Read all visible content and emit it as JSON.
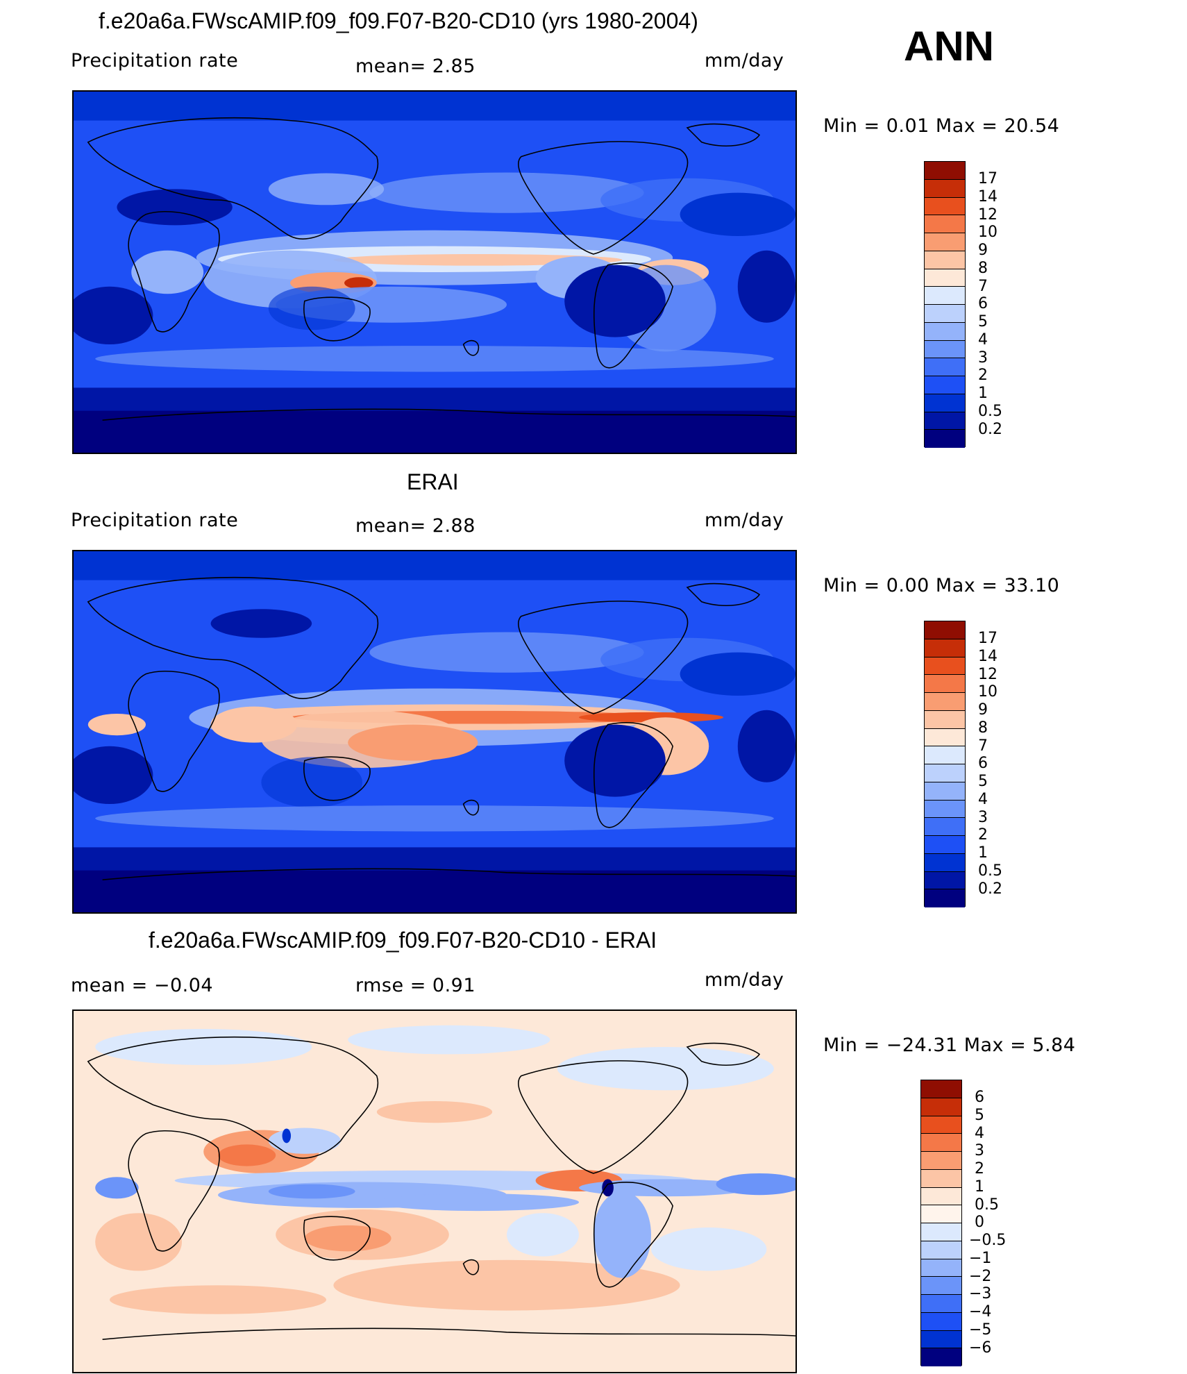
{
  "season": "ANN",
  "colors": {
    "precip_scale": [
      "#00007f",
      "#0016a6",
      "#0033d2",
      "#1e50f5",
      "#3f6ff7",
      "#6b94f9",
      "#94b3fa",
      "#bcd1fc",
      "#dce9fd",
      "#fde8d8",
      "#fcc5a6",
      "#f99d72",
      "#f47848",
      "#e8501e",
      "#c62e08",
      "#8f0e02"
    ],
    "diff_scale": [
      "#00007f",
      "#0016a6",
      "#0033d2",
      "#1e50f5",
      "#3f6ff7",
      "#6b94f9",
      "#94b3fa",
      "#bcd1fc",
      "#dce9fd",
      "#fde8d8",
      "#fcc5a6",
      "#f99d72",
      "#f47848",
      "#e8501e",
      "#c62e08",
      "#8f0e02"
    ]
  },
  "panels": [
    {
      "title": "f.e20a6a.FWscAMIP.f09_f09.F07-B20-CD10 (yrs 1980-2004)",
      "left_label": "Precipitation  rate",
      "mid_label": "mean=     2.85",
      "units": "mm/day",
      "minmax": "Min  =      0.01  Max  =     20.54",
      "colorbar_ticks": [
        "17",
        "14",
        "12",
        "10",
        "9",
        "8",
        "7",
        "6",
        "5",
        "4",
        "3",
        "2",
        "1",
        "0.5",
        "0.2"
      ]
    },
    {
      "title": "ERAI",
      "left_label": "Precipitation  rate",
      "mid_label": "mean=     2.88",
      "units": "mm/day",
      "minmax": "Min  =      0.00  Max  =     33.10",
      "colorbar_ticks": [
        "17",
        "14",
        "12",
        "10",
        "9",
        "8",
        "7",
        "6",
        "5",
        "4",
        "3",
        "2",
        "1",
        "0.5",
        "0.2"
      ]
    },
    {
      "title": "f.e20a6a.FWscAMIP.f09_f09.F07-B20-CD10 - ERAI",
      "left_label": "mean  =    −0.04",
      "mid_label": "rmse  =     0.91",
      "units": "mm/day",
      "minmax": "Min  = −24.31  Max  =      5.84",
      "colorbar_ticks": [
        "6",
        "5",
        "4",
        "3",
        "2",
        "1",
        "0.5",
        "0",
        "−0.5",
        "−1",
        "−2",
        "−3",
        "−4",
        "−5",
        "−6"
      ]
    }
  ]
}
